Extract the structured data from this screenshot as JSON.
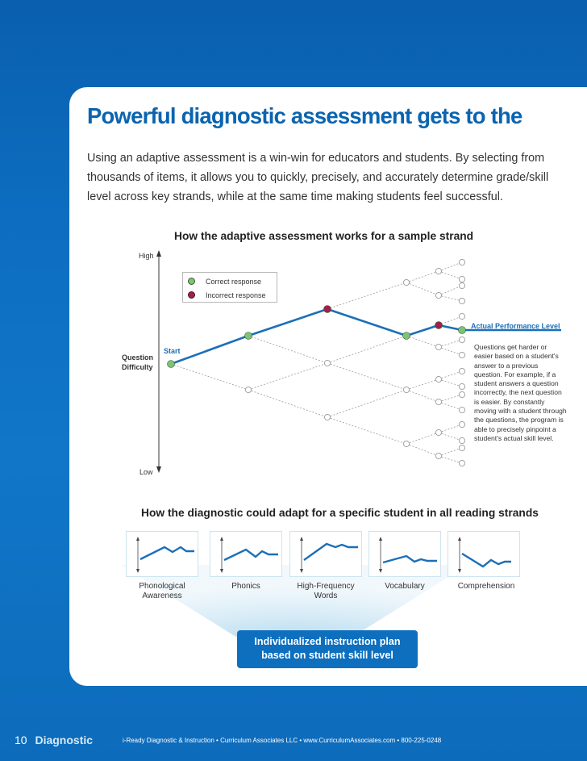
{
  "headline": "Powerful diagnostic assessment gets to the",
  "intro": "Using an adaptive assessment is a win-win for educators and students. By selecting from thousands of items, it allows you to quickly, precisely, and accurately determine grade/skill level across key strands, while at the same time making students feel successful.",
  "strand_section": {
    "title": "How the adaptive assessment works for a sample strand",
    "axis_high": "High",
    "axis_low": "Low",
    "axis_label_1": "Question",
    "axis_label_2": "Difficulty",
    "start_label": "Start",
    "legend": {
      "correct": "Correct response",
      "incorrect": "Incorrect response"
    },
    "actual_level_label": "Actual Performance Level",
    "note": "Questions get harder or easier based on a student's answer to a previous question. For example, if a student answers a question incorrectly, the next question is easier. By constantly moving with a student through the questions, the program is able to precisely pinpoint a student's actual skill level.",
    "colors": {
      "correct": "#7cc472",
      "incorrect": "#a31f4a",
      "path": "#1c6fb8"
    }
  },
  "reading_section": {
    "title": "How the diagnostic could adapt for a specific student in all reading strands",
    "strands": [
      {
        "label": "Phonological Awareness",
        "line1": "Phonological",
        "line2": "Awareness"
      },
      {
        "label": "Phonics",
        "line1": "Phonics",
        "line2": ""
      },
      {
        "label": "High-Frequency Words",
        "line1": "High-Frequency",
        "line2": "Words"
      },
      {
        "label": "Vocabulary",
        "line1": "Vocabulary",
        "line2": ""
      },
      {
        "label": "Comprehension",
        "line1": "Comprehension",
        "line2": ""
      }
    ],
    "plan_line1": "Individualized instruction plan",
    "plan_line2": "based on student skill level"
  },
  "footer": {
    "page_number": "10",
    "section": "Diagnostic",
    "info": "i-Ready Diagnostic & Instruction • Curriculum Associates LLC • www.CurriculumAssociates.com • 800-225-0248"
  }
}
